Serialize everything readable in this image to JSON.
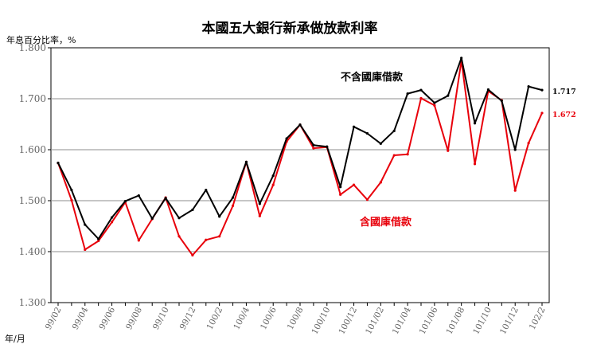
{
  "chart_data": {
    "type": "line",
    "title": "本國五大銀行新承做放款利率",
    "ylabel": "年息百分比率，%",
    "xlabel": "年/月",
    "ylim": [
      1.3,
      1.8
    ],
    "yticks": [
      "1.300",
      "1.400",
      "1.500",
      "1.600",
      "1.700",
      "1.800"
    ],
    "ytick_values": [
      1.3,
      1.4,
      1.5,
      1.6,
      1.7,
      1.8
    ],
    "grid": true,
    "categories": [
      "99/02",
      "99/03",
      "99/04",
      "99/05",
      "99/06",
      "99/07",
      "99/08",
      "99/09",
      "99/10",
      "99/11",
      "99/12",
      "100/01",
      "100/02",
      "100/03",
      "100/04",
      "100/05",
      "100/06",
      "100/07",
      "100/08",
      "100/09",
      "100/10",
      "100/11",
      "100/12",
      "101/01",
      "101/02",
      "101/03",
      "101/04",
      "101/05",
      "101/06",
      "101/07",
      "101/08",
      "101/09",
      "101/10",
      "101/11",
      "101/12",
      "102/01",
      "102/02"
    ],
    "xtick_labels": [
      "99/02",
      "99/04",
      "99/06",
      "99/08",
      "99/10",
      "99/12",
      "100/2",
      "100/4",
      "100/6",
      "100/8",
      "100/10",
      "100/12",
      "101/02",
      "101/04",
      "101/06",
      "101/08",
      "101/10",
      "101/12",
      "102/2"
    ],
    "xtick_indices": [
      0,
      2,
      4,
      6,
      8,
      10,
      12,
      14,
      16,
      18,
      20,
      22,
      24,
      26,
      28,
      30,
      32,
      34,
      36
    ],
    "series": [
      {
        "name": "不含國庫借款",
        "color": "#000000",
        "values": [
          1.574,
          1.521,
          1.453,
          1.425,
          1.467,
          1.499,
          1.51,
          1.465,
          1.505,
          1.466,
          1.482,
          1.521,
          1.469,
          1.506,
          1.576,
          1.494,
          1.549,
          1.622,
          1.649,
          1.609,
          1.606,
          1.527,
          1.645,
          1.632,
          1.612,
          1.637,
          1.71,
          1.717,
          1.692,
          1.706,
          1.78,
          1.652,
          1.718,
          1.696,
          1.6,
          1.724,
          1.717
        ]
      },
      {
        "name": "含國庫借款",
        "color": "#e8000b",
        "values": [
          1.574,
          1.501,
          1.404,
          1.421,
          1.458,
          1.497,
          1.422,
          1.464,
          1.506,
          1.43,
          1.393,
          1.423,
          1.43,
          1.49,
          1.576,
          1.47,
          1.531,
          1.616,
          1.649,
          1.603,
          1.605,
          1.512,
          1.531,
          1.502,
          1.536,
          1.589,
          1.591,
          1.701,
          1.687,
          1.598,
          1.775,
          1.572,
          1.715,
          1.697,
          1.52,
          1.613,
          1.672
        ]
      }
    ],
    "end_labels": [
      "1.717",
      "1.672"
    ]
  }
}
